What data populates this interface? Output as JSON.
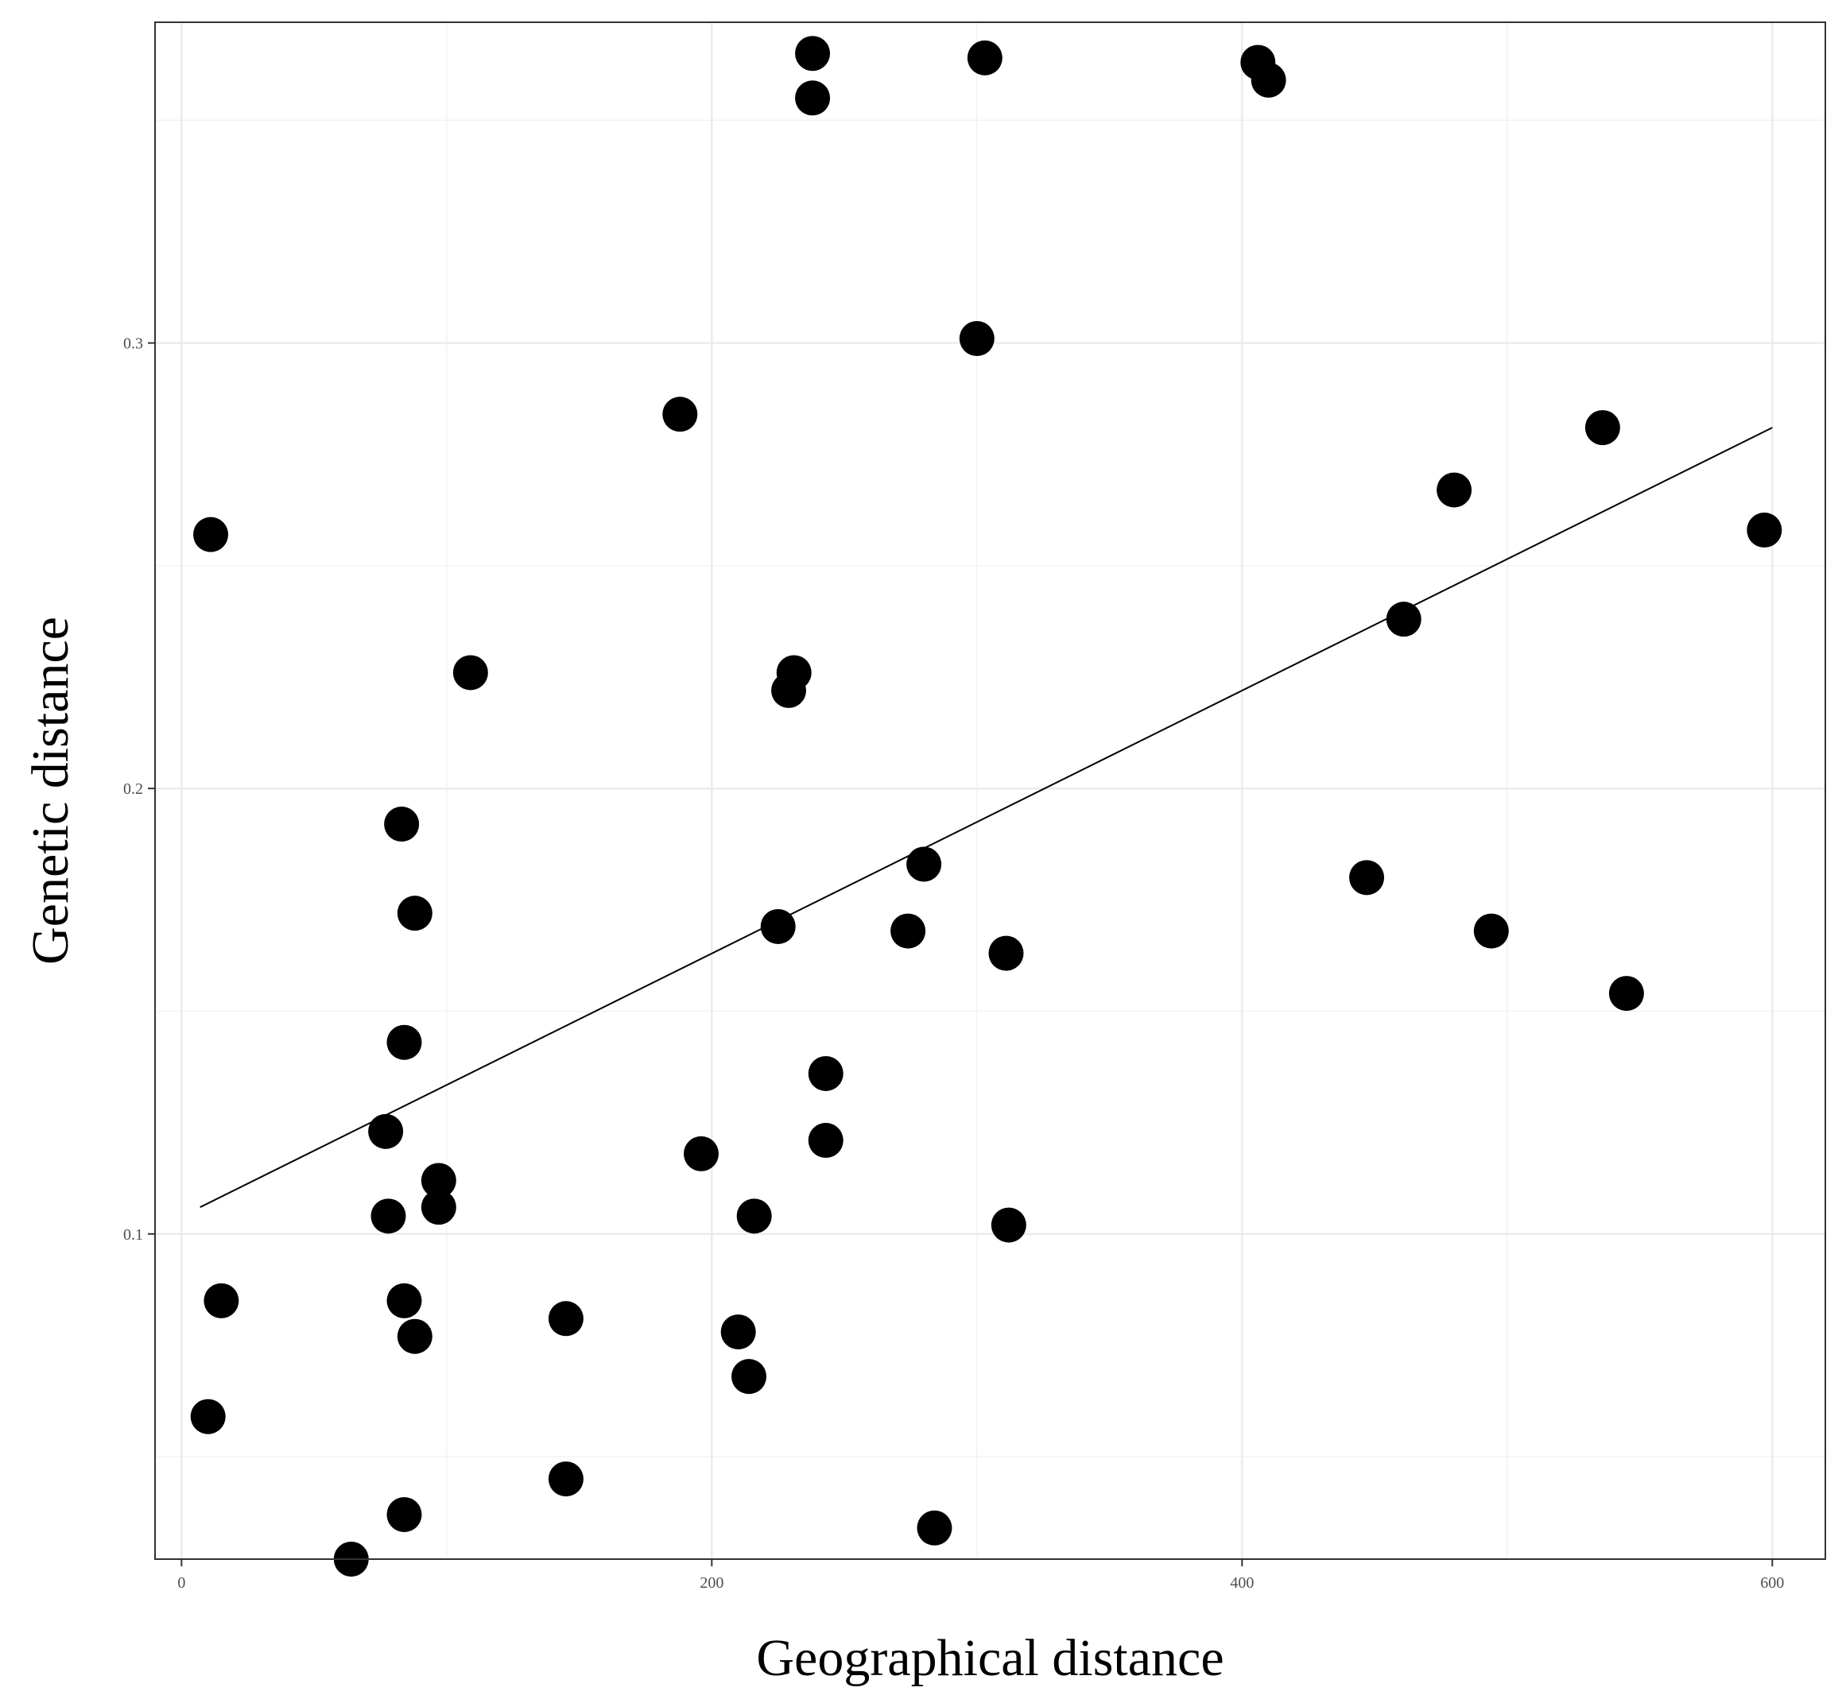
{
  "chart_data": {
    "type": "scatter",
    "xlabel": "Geographical distance",
    "ylabel": "Genetic distance",
    "xlim": [
      -10,
      620
    ],
    "ylim": [
      0.027,
      0.372
    ],
    "x_ticks": [
      0,
      200,
      400,
      600
    ],
    "x_tick_labels": [
      "0",
      "200",
      "400",
      "600"
    ],
    "y_ticks": [
      0.1,
      0.2,
      0.3
    ],
    "y_tick_labels": [
      "0.1",
      "0.2",
      "0.3"
    ],
    "x_minor_gridlines": [
      100,
      300,
      500
    ],
    "y_minor_gridlines": [
      0.05,
      0.15,
      0.25,
      0.35
    ],
    "grid": true,
    "legend": "none",
    "point_color": "#000000",
    "trend_line": {
      "x": [
        7,
        600
      ],
      "y": [
        0.106,
        0.281
      ],
      "color": "#000000"
    },
    "points": [
      {
        "x": 238,
        "y": 0.365
      },
      {
        "x": 303,
        "y": 0.364
      },
      {
        "x": 406,
        "y": 0.363
      },
      {
        "x": 410,
        "y": 0.359
      },
      {
        "x": 238,
        "y": 0.355
      },
      {
        "x": 300,
        "y": 0.301
      },
      {
        "x": 188,
        "y": 0.284
      },
      {
        "x": 536,
        "y": 0.281
      },
      {
        "x": 11,
        "y": 0.257
      },
      {
        "x": 480,
        "y": 0.267
      },
      {
        "x": 597,
        "y": 0.258
      },
      {
        "x": 461,
        "y": 0.238
      },
      {
        "x": 109,
        "y": 0.226
      },
      {
        "x": 231,
        "y": 0.226
      },
      {
        "x": 229,
        "y": 0.222
      },
      {
        "x": 83,
        "y": 0.192
      },
      {
        "x": 280,
        "y": 0.183
      },
      {
        "x": 447,
        "y": 0.18
      },
      {
        "x": 88,
        "y": 0.172
      },
      {
        "x": 225,
        "y": 0.169
      },
      {
        "x": 274,
        "y": 0.168
      },
      {
        "x": 494,
        "y": 0.168
      },
      {
        "x": 311,
        "y": 0.163
      },
      {
        "x": 545,
        "y": 0.154
      },
      {
        "x": 84,
        "y": 0.143
      },
      {
        "x": 243,
        "y": 0.136
      },
      {
        "x": 77,
        "y": 0.123
      },
      {
        "x": 243,
        "y": 0.121
      },
      {
        "x": 196,
        "y": 0.118
      },
      {
        "x": 97,
        "y": 0.112
      },
      {
        "x": 97,
        "y": 0.106
      },
      {
        "x": 78,
        "y": 0.104
      },
      {
        "x": 216,
        "y": 0.104
      },
      {
        "x": 312,
        "y": 0.102
      },
      {
        "x": 15,
        "y": 0.085
      },
      {
        "x": 84,
        "y": 0.085
      },
      {
        "x": 145,
        "y": 0.081
      },
      {
        "x": 88,
        "y": 0.077
      },
      {
        "x": 210,
        "y": 0.078
      },
      {
        "x": 214,
        "y": 0.068
      },
      {
        "x": 10,
        "y": 0.059
      },
      {
        "x": 145,
        "y": 0.045
      },
      {
        "x": 84,
        "y": 0.037
      },
      {
        "x": 284,
        "y": 0.034
      },
      {
        "x": 64,
        "y": 0.027
      }
    ]
  }
}
